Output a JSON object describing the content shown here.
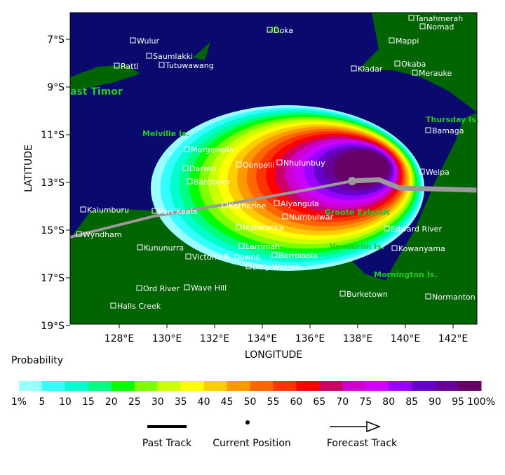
{
  "map": {
    "x_label": "LONGITUDE",
    "y_label": "LATITUDE",
    "lon_ticks": [
      {
        "value": 128,
        "label": "128°E"
      },
      {
        "value": 130,
        "label": "130°E"
      },
      {
        "value": 132,
        "label": "132°E"
      },
      {
        "value": 134,
        "label": "134°E"
      },
      {
        "value": 136,
        "label": "136°E"
      },
      {
        "value": 138,
        "label": "138°E"
      },
      {
        "value": 140,
        "label": "140°E"
      },
      {
        "value": 142,
        "label": "142°E"
      }
    ],
    "lat_ticks": [
      {
        "value": -7,
        "label": "7°S"
      },
      {
        "value": -9,
        "label": "9°S"
      },
      {
        "value": -11,
        "label": "11°S"
      },
      {
        "value": -13,
        "label": "13°S"
      },
      {
        "value": -15,
        "label": "15°S"
      },
      {
        "value": -17,
        "label": "17°S"
      },
      {
        "value": -19,
        "label": "19°S"
      }
    ],
    "places": [
      "Doka",
      "Tanahmerah",
      "Nomad",
      "Mappi",
      "Wulur",
      "Saumlakki",
      "Tutuwawang",
      "Ratti",
      "Kladar",
      "Okaba",
      "Merauke",
      "Bamaga",
      "Murgenella",
      "Darwin",
      "Oenpelli",
      "Nhulunbuy",
      "Weipa",
      "Batchelor",
      "Kalumburu",
      "Port Keats",
      "Katherine",
      "Alyangula",
      "Numbulwar",
      "Wyndham",
      "Mataranka",
      "Edward River",
      "Kununurra",
      "Larrimah",
      "Kowanyama",
      "Victoria R. Downs",
      "Borroloola",
      "Daly Waters",
      "Ord River",
      "Wave Hill",
      "Burketown",
      "Normanton",
      "Halls Creek"
    ],
    "regions": [
      "ast Timor",
      "Thursday Is.",
      "Melville Is.",
      "Groote Eylandt",
      "Vanderlin Is.",
      "Mornington Is."
    ]
  },
  "legend": {
    "title": "Probability",
    "labels": [
      "1%",
      "5",
      "10",
      "15",
      "20",
      "25",
      "30",
      "35",
      "40",
      "45",
      "50",
      "55",
      "60",
      "65",
      "70",
      "75",
      "80",
      "85",
      "90",
      "95",
      "100%"
    ],
    "colors": [
      "#99ffff",
      "#33ffff",
      "#00ffcc",
      "#00ff80",
      "#00ff00",
      "#80ff00",
      "#ccff00",
      "#ffff00",
      "#ffcc00",
      "#ff9900",
      "#ff6600",
      "#ff3300",
      "#ff0000",
      "#cc0066",
      "#cc00cc",
      "#cc00ff",
      "#9900ff",
      "#6600cc",
      "#660099",
      "#660066"
    ],
    "keys": [
      "Past Track",
      "Current Position",
      "Forecast Track"
    ]
  }
}
